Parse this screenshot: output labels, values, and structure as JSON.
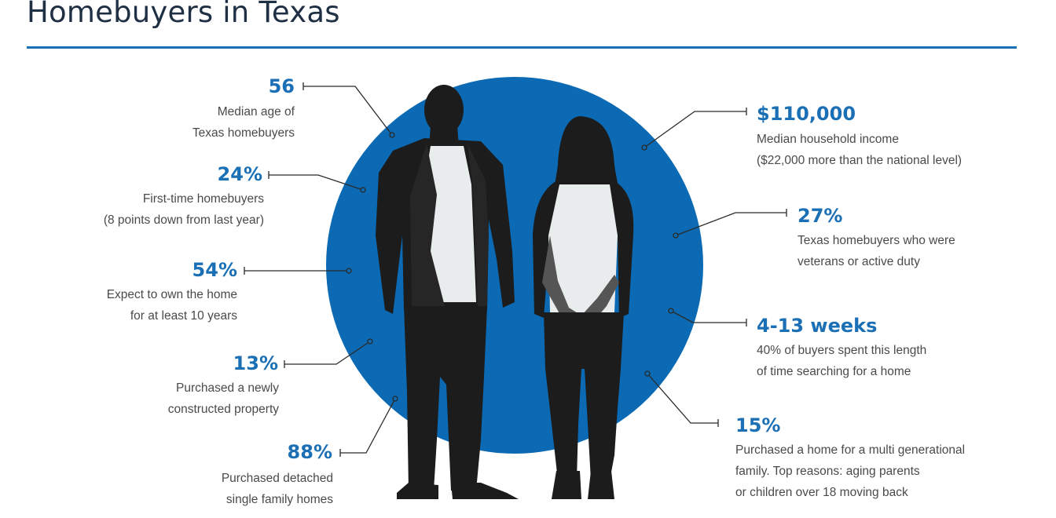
{
  "title": "Homebuyers in Texas",
  "colors": {
    "accent": "#1a6fb5",
    "circle": "#0b6ab3",
    "silhouette": "#1c1c1c",
    "shirt": "#e9ecec"
  },
  "left_stats": [
    {
      "value": "56",
      "line1": "Median age of",
      "line2": "Texas homebuyers"
    },
    {
      "value": "24%",
      "line1": "First-time homebuyers",
      "line2": "(8 points down from last year)"
    },
    {
      "value": "54%",
      "line1": "Expect to own the home",
      "line2": "for at least 10 years"
    },
    {
      "value": "13%",
      "line1": "Purchased a newly",
      "line2": "constructed property"
    },
    {
      "value": "88%",
      "line1": "Purchased detached",
      "line2": "single family homes"
    }
  ],
  "right_stats": [
    {
      "value": "$110,000",
      "line1": "Median household income",
      "line2": "($22,000 more than the national level)"
    },
    {
      "value": "27%",
      "line1": "Texas homebuyers who were",
      "line2": "veterans or active duty"
    },
    {
      "value": "4-13 weeks",
      "line1": "40% of buyers spent this length",
      "line2": "of time searching for a home"
    },
    {
      "value": "15%",
      "line1": "Purchased a home for a multi generational",
      "line2": "family. Top reasons: aging parents",
      "line3": "or children over 18 moving back"
    }
  ]
}
